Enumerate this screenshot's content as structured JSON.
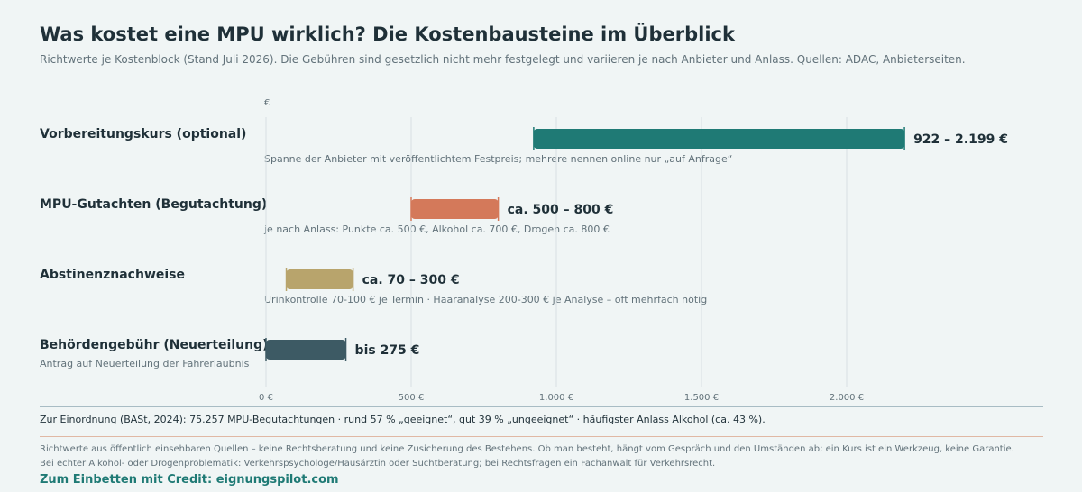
{
  "title": "Was kostet eine MPU wirklich? Die Kostenbausteine im Überblick",
  "subtitle": "Richtwerte je Kostenblock (Stand Juli 2026). Die Gebühren sind gesetzlich nicht mehr festgelegt und variieren je nach Anbieter und Anlass. Quellen: ADAC, Anbieterseiten.",
  "rows": [
    {
      "label": "Vorbereitungskurs (optional)",
      "sublabel": "",
      "note": "Spanne der Anbieter mit veröffentlichtem Festpreis; mehrere nennen online nur „auf Anfrage“"
    },
    {
      "label": "MPU-Gutachten (Begutachtung)",
      "sublabel": "",
      "note": "je nach Anlass: Punkte ca. 500 €, Alkohol ca. 700 €, Drogen ca. 800 €"
    },
    {
      "label": "Abstinenznachweise",
      "sublabel": "",
      "note": "Urinkontrolle 70-100 € je Termin · Haaranalyse 200-300 € je Analyse – oft mehrfach nötig"
    },
    {
      "label": "Behördengebühr (Neuerteilung)",
      "sublabel": "Antrag auf Neuerteilung der Fahrerlaubnis",
      "note": ""
    }
  ],
  "chart_data": {
    "type": "bar",
    "orientation": "horizontal-range",
    "unit_label": "€",
    "xlim": [
      0,
      2500
    ],
    "xticks": [
      0,
      500,
      1000,
      1500,
      2000
    ],
    "xtick_labels": [
      "0 €",
      "500 €",
      "1.000 €",
      "1.500 €",
      "2.000 €"
    ],
    "grid": true,
    "categories": [
      "Vorbereitungskurs (optional)",
      "MPU-Gutachten (Begutachtung)",
      "Abstinenznachweise",
      "Behördengebühr (Neuerteilung)"
    ],
    "ranges": [
      {
        "min": 922,
        "max": 2199,
        "label": "922 – 2.199 €",
        "color": "#1f7a75"
      },
      {
        "min": 500,
        "max": 800,
        "label": "ca. 500 – 800 €",
        "color": "#d4795a"
      },
      {
        "min": 70,
        "max": 300,
        "label": "ca. 70 – 300 €",
        "color": "#b8a46c"
      },
      {
        "min": 0,
        "max": 275,
        "label": "bis 275 €",
        "color": "#3d5a64"
      }
    ]
  },
  "summary": "Zur Einordnung (BASt, 2024): 75.257 MPU-Begutachtungen · rund 57 % „geeignet“, gut 39 % „ungeeignet“ · häufigster Anlass Alkohol (ca. 43 %).",
  "disclaimer1": "Richtwerte aus öffentlich einsehbaren Quellen – keine Rechtsberatung und keine Zusicherung des Bestehens. Ob man besteht, hängt vom Gespräch und den Umständen ab; ein Kurs ist ein Werkzeug, keine Garantie.",
  "disclaimer2": "Bei echter Alkohol- oder Drogenproblematik: Verkehrspsychologe/Hausärztin oder Suchtberatung; bei Rechtsfragen ein Fachanwalt für Verkehrsrecht.",
  "credit": "Zum Einbetten mit Credit: eignungspilot.com"
}
